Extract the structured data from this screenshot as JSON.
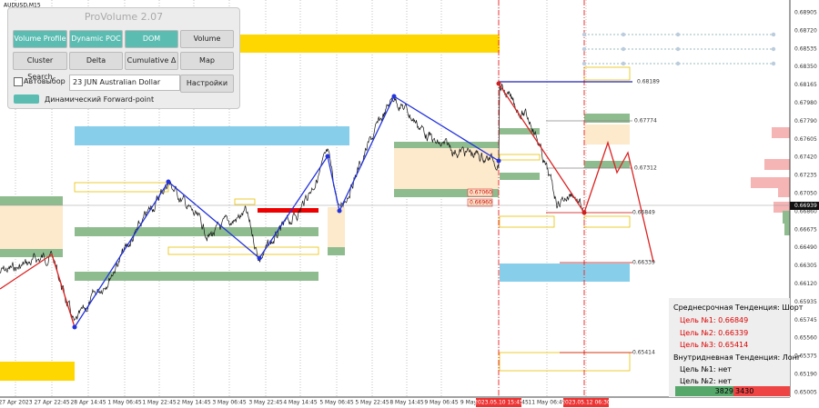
{
  "symbol": "AUDUSD,M15",
  "panel": {
    "title": "ProVolume 2.07",
    "buttons": [
      "Volume Profile",
      "Dynamic POC",
      "DOM",
      "Volume",
      "Cluster Search",
      "Delta",
      "Cumulative Δ",
      "Map"
    ],
    "auto_select": "Автовыбор",
    "instrument": "23 JUN Australian Dollar",
    "settings": "Настройки",
    "forward_point": "Динамический Forward-point"
  },
  "price_axis": [
    "0.68905",
    "0.68720",
    "0.68535",
    "0.68350",
    "0.68165",
    "0.67980",
    "0.67790",
    "0.67605",
    "0.67420",
    "0.67235",
    "0.67050",
    "0.66860",
    "0.66675",
    "0.66490",
    "0.66305",
    "0.66120",
    "0.65935",
    "0.65745",
    "0.65560",
    "0.65375",
    "0.65190",
    "0.65005"
  ],
  "current_price": "0.66939",
  "time_axis": [
    "27 Apr 2023",
    "27 Apr 22:45",
    "28 Apr 14:45",
    "1 May 06:45",
    "1 May 22:45",
    "2 May 14:45",
    "3 May 06:45",
    "3 May 22:45",
    "4 May 14:45",
    "5 May 06:45",
    "5 May 22:45",
    "8 May 14:45",
    "9 May 06:45",
    "9 May",
    "2023.05.10 15:45",
    "45",
    "11 May 06:45",
    "2023.05.12 06:30"
  ],
  "levels": [
    "0.68189",
    "0.67774",
    "0.67312",
    "0.67060",
    "0.66960",
    "0.66849",
    "0.66339",
    "0.65414"
  ],
  "info": {
    "medium_trend": "Среднесрочная Тенденция: Шорт",
    "medium_targets": [
      "Цель №1: 0.66849",
      "Цель №2: 0.66339",
      "Цель №3: 0.65414"
    ],
    "intraday_trend": "Внутридневная Тенденция: Лонг",
    "intraday_targets": [
      "Цель №1: нет",
      "Цель №2: нет"
    ],
    "buy_volume": "3829",
    "sell_volume": "3430"
  }
}
